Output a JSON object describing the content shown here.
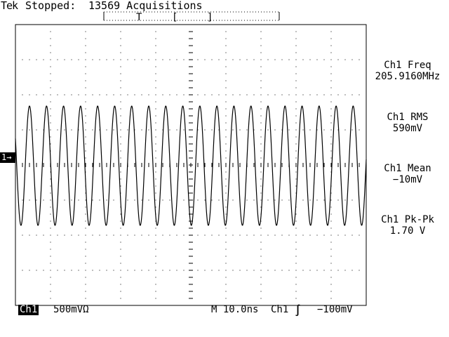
{
  "header": {
    "brand": "Tek",
    "status": "Stopped:",
    "acquisitions": "13569 Acquisitions",
    "trigger_marker": "T",
    "bracket_open": "[",
    "bracket_close": "]"
  },
  "channel_marker": "1→",
  "measurements": [
    {
      "label": "Ch1 Freq",
      "value": "205.9160MHz"
    },
    {
      "label": "Ch1 RMS",
      "value": "590mV"
    },
    {
      "label": "Ch1 Mean",
      "value": "−10mV"
    },
    {
      "label": "Ch1 Pk-Pk",
      "value": "1.70 V"
    }
  ],
  "footer": {
    "channel": "Ch1",
    "scale": "500mVΩ",
    "timebase": "M 10.0ns",
    "trigger_source": "Ch1",
    "trigger_slope": "∫",
    "trigger_level": "−100mV"
  },
  "waveform": {
    "frequency_mhz": 205.916,
    "pk_pk_v": 1.7,
    "mean_mv": -10,
    "volts_per_div": 0.5,
    "time_per_div_ns": 10.0,
    "horizontal_divisions": 10,
    "vertical_divisions": 8
  },
  "colors": {
    "background": "#ffffff",
    "trace": "#000000"
  }
}
